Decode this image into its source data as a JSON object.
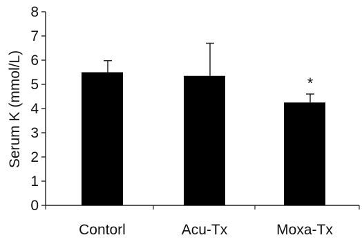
{
  "chart_data": {
    "type": "bar",
    "title": "",
    "xlabel": "",
    "ylabel": "Serum K (mmol/L)",
    "ylim": [
      0,
      8
    ],
    "yticks": [
      "0",
      "1",
      "2",
      "3",
      "4",
      "5",
      "6",
      "7",
      "8"
    ],
    "categories": [
      "Contorl",
      "Acu-Tx",
      "Moxa-Tx"
    ],
    "values": [
      5.5,
      5.35,
      4.25
    ],
    "error_upper": [
      0.48,
      1.35,
      0.35
    ],
    "annotations": [
      "",
      "",
      "*"
    ],
    "bar_color": "#000000",
    "grid": false,
    "legend": "none"
  }
}
